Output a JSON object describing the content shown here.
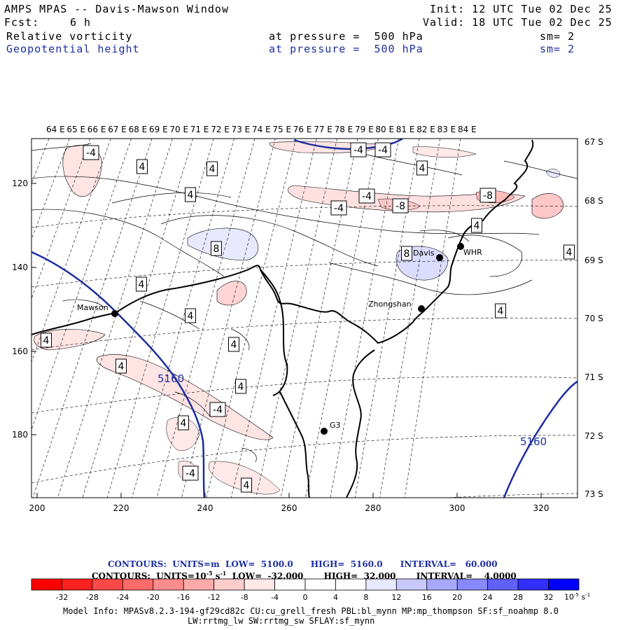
{
  "header": {
    "title": "AMPS MPAS -- Davis-Mawson Window",
    "fcst_label": "Fcst:",
    "fcst_value": "6 h",
    "init": "Init: 12 UTC Tue 02 Dec 25",
    "valid": "Valid: 18 UTC Tue 02 Dec 25",
    "field1": "Relative vorticity",
    "field1_level": "at pressure =  500 hPa",
    "field1_sm": "sm= 2",
    "field2": "Geopotential height",
    "field2_level": "at pressure =  500 hPa",
    "field2_sm": "sm= 2"
  },
  "map": {
    "lon_labels": [
      "64 E",
      "65 E",
      "66 E",
      "67 E",
      "68 E",
      "69 E",
      "70 E",
      "71 E",
      "72 E",
      "73 E",
      "74 E",
      "75 E",
      "76 E",
      "77 E",
      "78 E",
      "79 E",
      "80 E",
      "81 E",
      "82 E",
      "83 E",
      "84 E"
    ],
    "lat_labels": [
      "67 S",
      "68 S",
      "69 S",
      "70 S",
      "71 S",
      "72 S",
      "73 S"
    ],
    "x_ticks": [
      "200",
      "220",
      "240",
      "260",
      "280",
      "300",
      "320"
    ],
    "y_ticks": [
      "120",
      "140",
      "160",
      "180"
    ],
    "stations": [
      {
        "name": "Mawson"
      },
      {
        "name": "Davis"
      },
      {
        "name": "WHR"
      },
      {
        "name": "Zhongshan"
      },
      {
        "name": "G3"
      }
    ],
    "height_labels": [
      "5160",
      "5160"
    ],
    "vort_labels": [
      "-4",
      "4",
      "4",
      "4",
      "-4",
      "-4",
      "-4",
      "4",
      "-4",
      "-8",
      "-8",
      "4",
      "4",
      "8",
      "8",
      "4",
      "4",
      "4",
      "4",
      "4",
      "4",
      "4",
      "4",
      "-4",
      "-4",
      "4",
      "-4",
      "-4",
      "4",
      "-4"
    ]
  },
  "footer": {
    "contours1": "CONTOURS:  UNITS=m  LOW=  5100.0      HIGH=  5160.0      INTERVAL=   60.000",
    "contours2_a": "CONTOURS:  UNITS=10",
    "contours2_exp": "-5",
    "contours2_b": " s",
    "contours2_exp2": "-1",
    "contours2_c": "  LOW=  -32.000       HIGH=  32.000       INTERVAL=    4.0000",
    "colorbar_labels": [
      "-32",
      "-28",
      "-24",
      "-20",
      "-16",
      "-12",
      "-8",
      "-4",
      "0",
      "4",
      "8",
      "12",
      "16",
      "20",
      "24",
      "28",
      "32"
    ],
    "colorbar_unit_a": "10",
    "colorbar_unit_exp": "-5",
    "colorbar_unit_b": " s",
    "colorbar_unit_exp2": "-1",
    "colorbar_colors": [
      "#ff0000",
      "#ff2020",
      "#ff4848",
      "#ff6a6a",
      "#ff8c8c",
      "#ffaaaa",
      "#ffcccc",
      "#ffe8e8",
      "#ffffff",
      "#ffffff",
      "#e8e8ff",
      "#c8c8ff",
      "#a8a8ff",
      "#8888ff",
      "#6060ff",
      "#3030ff",
      "#0000ff"
    ],
    "model_info1": "Model Info: MPASv8.2.3-194-gf29cd82c CU:cu_grell_fresh PBL:bl_mynn MP:mp_thompson SF:sf_noahmp 8.0",
    "model_info2": "LW:rrtmg_lw SW:rrtmg_sw SFLAY:sf_mynn"
  }
}
